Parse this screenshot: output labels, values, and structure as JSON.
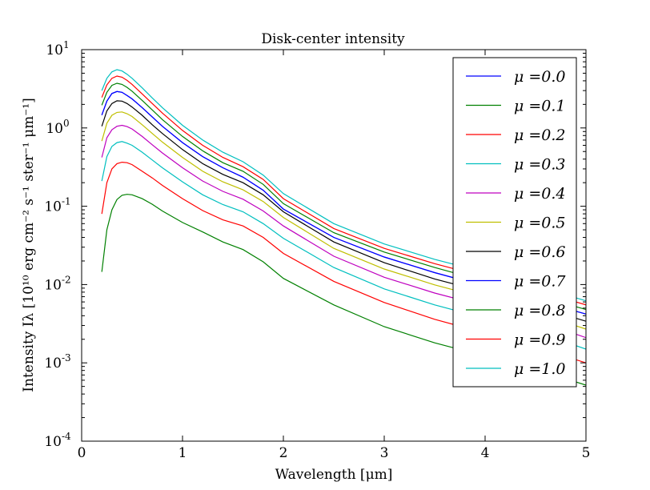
{
  "chart_data": {
    "type": "line",
    "title": "Disk-center intensity",
    "xlabel": "Wavelength [μm]",
    "ylabel": "Intensity Iλ [10¹⁰ erg cm⁻² s⁻¹ ster⁻¹ μm⁻¹]",
    "xlim": [
      0,
      5
    ],
    "ylim": [
      0.0001,
      10
    ],
    "yscale": "log",
    "x_ticks": [
      "0",
      "1",
      "2",
      "3",
      "4",
      "5"
    ],
    "y_ticks": [
      {
        "base": "10",
        "exp": "1"
      },
      {
        "base": "10",
        "exp": "0"
      },
      {
        "base": "10",
        "exp": "-1"
      },
      {
        "base": "10",
        "exp": "-2"
      },
      {
        "base": "10",
        "exp": "-3"
      },
      {
        "base": "10",
        "exp": "-4"
      }
    ],
    "legend_position": "upper right",
    "grid": false,
    "x": [
      0.2,
      0.25,
      0.3,
      0.35,
      0.4,
      0.45,
      0.5,
      0.6,
      0.7,
      0.8,
      1.0,
      1.2,
      1.4,
      1.6,
      1.8,
      2.0,
      2.5,
      3.0,
      3.5,
      4.0,
      4.5,
      5.0
    ],
    "series": [
      {
        "name": "μ =0.0",
        "color": "#0000ff",
        "values": [
          1.46,
          2.2,
          2.75,
          2.92,
          2.85,
          2.6,
          2.35,
          1.82,
          1.38,
          1.05,
          0.65,
          0.43,
          0.31,
          0.235,
          0.16,
          0.092,
          0.04,
          0.0225,
          0.0142,
          0.0095,
          0.0063,
          0.0042
        ]
      },
      {
        "name": "μ =0.1",
        "color": "#008000",
        "values": [
          0.0145,
          0.05,
          0.09,
          0.122,
          0.138,
          0.142,
          0.14,
          0.125,
          0.106,
          0.087,
          0.062,
          0.047,
          0.035,
          0.028,
          0.0195,
          0.012,
          0.0055,
          0.0029,
          0.0018,
          0.00122,
          0.00083,
          0.00052
        ]
      },
      {
        "name": "μ =0.2",
        "color": "#ff0000",
        "values": [
          0.08,
          0.2,
          0.3,
          0.35,
          0.365,
          0.36,
          0.34,
          0.28,
          0.23,
          0.185,
          0.125,
          0.088,
          0.067,
          0.056,
          0.04,
          0.025,
          0.011,
          0.0059,
          0.0036,
          0.0024,
          0.0016,
          0.001
        ]
      },
      {
        "name": "μ =0.3",
        "color": "#00bfbf",
        "values": [
          0.21,
          0.43,
          0.58,
          0.65,
          0.67,
          0.64,
          0.6,
          0.49,
          0.39,
          0.31,
          0.205,
          0.14,
          0.105,
          0.085,
          0.06,
          0.039,
          0.0165,
          0.0088,
          0.0055,
          0.0037,
          0.0025,
          0.0015
        ]
      },
      {
        "name": "μ =0.4",
        "color": "#bf00bf",
        "values": [
          0.42,
          0.75,
          0.95,
          1.05,
          1.08,
          1.04,
          0.97,
          0.78,
          0.61,
          0.48,
          0.31,
          0.21,
          0.155,
          0.123,
          0.087,
          0.056,
          0.023,
          0.0124,
          0.0078,
          0.0053,
          0.0035,
          0.0021
        ]
      },
      {
        "name": "μ =0.5",
        "color": "#bfbf00",
        "values": [
          0.68,
          1.15,
          1.45,
          1.58,
          1.6,
          1.52,
          1.4,
          1.1,
          0.85,
          0.66,
          0.42,
          0.28,
          0.205,
          0.162,
          0.115,
          0.072,
          0.029,
          0.0158,
          0.0099,
          0.0067,
          0.0044,
          0.0027
        ]
      },
      {
        "name": "μ =0.6",
        "color": "#000000",
        "values": [
          1.05,
          1.65,
          2.05,
          2.22,
          2.2,
          2.05,
          1.85,
          1.45,
          1.1,
          0.85,
          0.53,
          0.35,
          0.255,
          0.2,
          0.14,
          0.085,
          0.035,
          0.019,
          0.0118,
          0.008,
          0.0053,
          0.0034
        ]
      },
      {
        "name": "μ =0.7",
        "color": "#0000ff",
        "values": [
          1.46,
          2.2,
          2.75,
          2.92,
          2.85,
          2.6,
          2.35,
          1.82,
          1.38,
          1.05,
          0.65,
          0.43,
          0.31,
          0.235,
          0.16,
          0.092,
          0.04,
          0.0225,
          0.0142,
          0.0095,
          0.0063,
          0.0042
        ]
      },
      {
        "name": "μ =0.8",
        "color": "#008000",
        "values": [
          1.95,
          2.85,
          3.5,
          3.72,
          3.6,
          3.3,
          2.95,
          2.25,
          1.7,
          1.28,
          0.78,
          0.51,
          0.36,
          0.28,
          0.19,
          0.108,
          0.046,
          0.026,
          0.0165,
          0.011,
          0.0073,
          0.0048
        ]
      },
      {
        "name": "μ =0.9",
        "color": "#ff0000",
        "values": [
          2.45,
          3.55,
          4.3,
          4.6,
          4.45,
          4.05,
          3.6,
          2.72,
          2.05,
          1.55,
          0.93,
          0.6,
          0.42,
          0.32,
          0.22,
          0.125,
          0.052,
          0.029,
          0.0185,
          0.0125,
          0.0085,
          0.0055
        ]
      },
      {
        "name": "μ =1.0",
        "color": "#00bfbf",
        "values": [
          3.0,
          4.3,
          5.2,
          5.55,
          5.35,
          4.85,
          4.3,
          3.25,
          2.42,
          1.82,
          1.08,
          0.7,
          0.49,
          0.37,
          0.25,
          0.145,
          0.06,
          0.033,
          0.021,
          0.0143,
          0.0096,
          0.0062
        ]
      }
    ]
  }
}
